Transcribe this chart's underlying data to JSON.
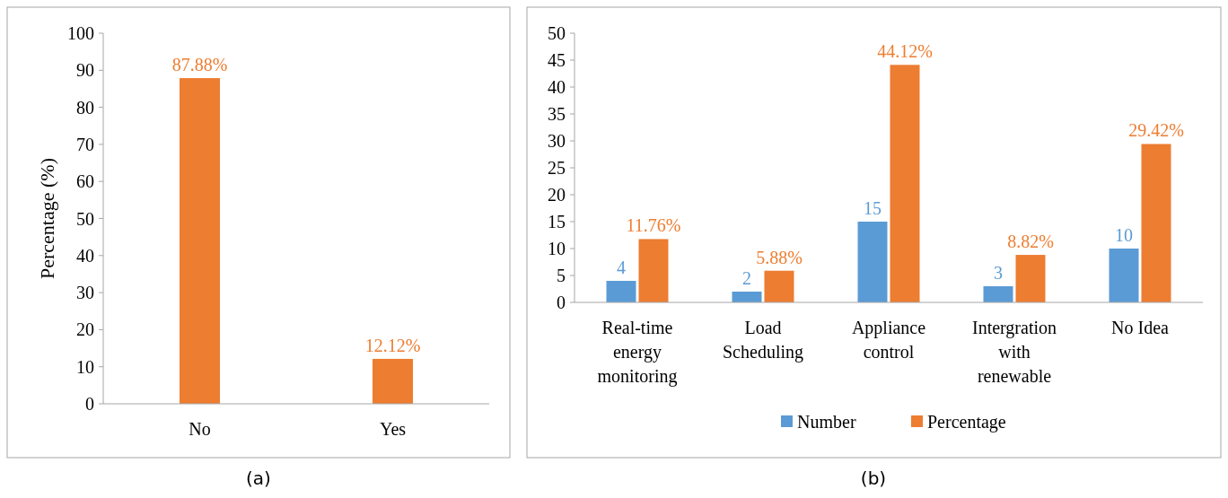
{
  "chart_data": [
    {
      "type": "bar",
      "categories": [
        "No",
        "Yes"
      ],
      "ylabel": "Percentage (%)",
      "ylim": [
        0,
        100
      ],
      "yticks": [
        0,
        10,
        20,
        30,
        40,
        50,
        60,
        70,
        80,
        90,
        100
      ],
      "annotations": [
        "(a)"
      ],
      "series": [
        {
          "color": "#ed7d31",
          "values": [
            87.88,
            12.12
          ],
          "value_labels": [
            "87.88%",
            "12.12%"
          ]
        }
      ]
    },
    {
      "type": "bar",
      "categories": [
        "Real-time energy monitoring",
        "Load Scheduling",
        "Appliance control",
        "Intergration with renewable",
        "No Idea"
      ],
      "ylim": [
        0,
        50
      ],
      "yticks": [
        0,
        5,
        10,
        15,
        20,
        25,
        30,
        35,
        40,
        45,
        50
      ],
      "legend": "bottom",
      "annotations": [
        "(b)"
      ],
      "series": [
        {
          "name": "Number",
          "color": "#5b9bd5",
          "values": [
            4,
            2,
            15,
            3,
            10
          ],
          "value_labels": [
            "4",
            "2",
            "15",
            "3",
            "10"
          ]
        },
        {
          "name": "Percentage",
          "color": "#ed7d31",
          "values": [
            11.76,
            5.88,
            44.12,
            8.82,
            29.42
          ],
          "value_labels": [
            "11.76%",
            "5.88%",
            "44.12%",
            "8.82%",
            "29.42%"
          ]
        }
      ]
    }
  ]
}
